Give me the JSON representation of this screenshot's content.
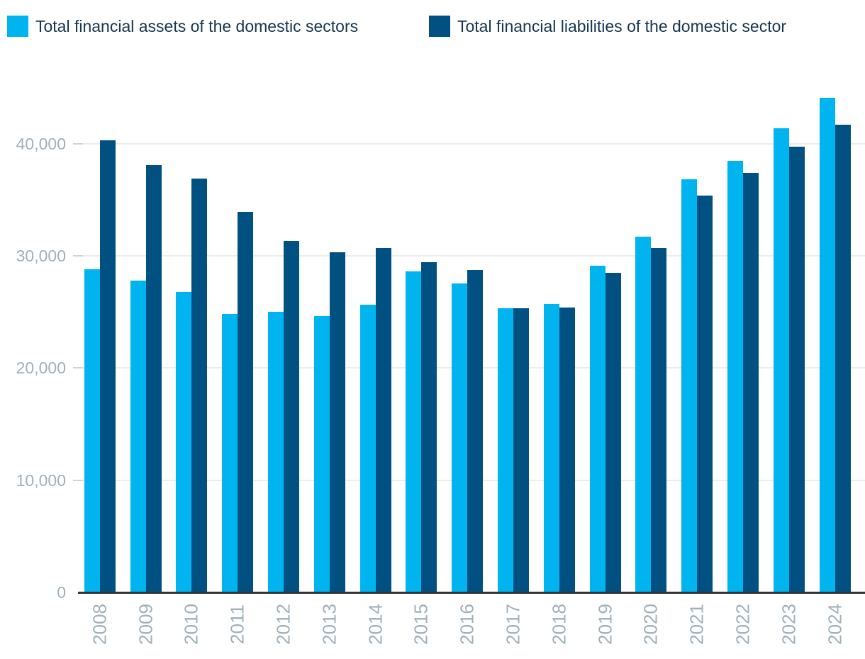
{
  "legend": {
    "items": [
      {
        "label": "Total financial assets of the domestic sectors",
        "color": "#00b5ef"
      },
      {
        "label": "Total financial liabilities of the domestic sector",
        "color": "#005181"
      }
    ]
  },
  "chart_data": {
    "type": "bar",
    "title": "",
    "xlabel": "",
    "ylabel": "",
    "categories": [
      "2008",
      "2009",
      "2010",
      "2011",
      "2012",
      "2013",
      "2014",
      "2015",
      "2016",
      "2017",
      "2018",
      "2019",
      "2020",
      "2021",
      "2022",
      "2023",
      "2024"
    ],
    "series": [
      {
        "name": "Total financial assets of the domestic sectors",
        "color": "#00b5ef",
        "values": [
          28800,
          27800,
          26750,
          24800,
          25000,
          24650,
          25650,
          28600,
          27500,
          25350,
          25700,
          29100,
          31700,
          36800,
          38450,
          41350,
          44050
        ]
      },
      {
        "name": "Total financial liabilities of the domestic sector",
        "color": "#005181",
        "values": [
          40300,
          38050,
          36850,
          33900,
          31300,
          30300,
          30700,
          29450,
          28700,
          25300,
          25400,
          28500,
          30700,
          35350,
          37400,
          39700,
          41700
        ]
      }
    ],
    "ylim": [
      0,
      46500
    ],
    "y_ticks": [
      0,
      10000,
      20000,
      30000,
      40000
    ],
    "grid": "horizontal",
    "legend_position": "top-left",
    "x_label_rotation": -90
  },
  "colors": {
    "assets": "#00b5ef",
    "liabilities": "#005181",
    "legend_text": "#17354e",
    "axis_label": "#9fb0ba",
    "gridline": "#ededed",
    "axis_line": "#333538",
    "background": "#ffffff"
  }
}
